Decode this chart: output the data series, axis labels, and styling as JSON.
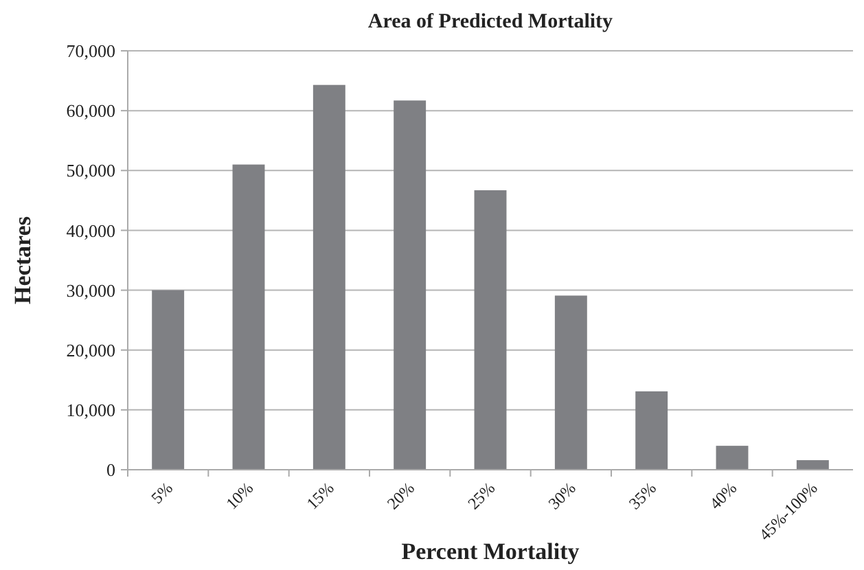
{
  "chart_data": {
    "type": "bar",
    "title": "Area of Predicted Mortality",
    "xlabel": "Percent Mortality",
    "ylabel": "Hectares",
    "categories": [
      "5%",
      "10%",
      "15%",
      "20%",
      "25%",
      "30%",
      "35%",
      "40%",
      "45%-100%"
    ],
    "values": [
      30000,
      51000,
      64300,
      61700,
      46700,
      29100,
      13100,
      4000,
      1600
    ],
    "color": "#7f8084",
    "ylim": [
      0,
      70000
    ],
    "yticks": [
      {
        "value": 0,
        "label": "0"
      },
      {
        "value": 10000,
        "label": "10,000"
      },
      {
        "value": 20000,
        "label": "20,000"
      },
      {
        "value": 30000,
        "label": "30,000"
      },
      {
        "value": 40000,
        "label": "40,000"
      },
      {
        "value": 50000,
        "label": "50,000"
      },
      {
        "value": 60000,
        "label": "60,000"
      },
      {
        "value": 70000,
        "label": "70,000"
      }
    ],
    "grid": "y"
  }
}
